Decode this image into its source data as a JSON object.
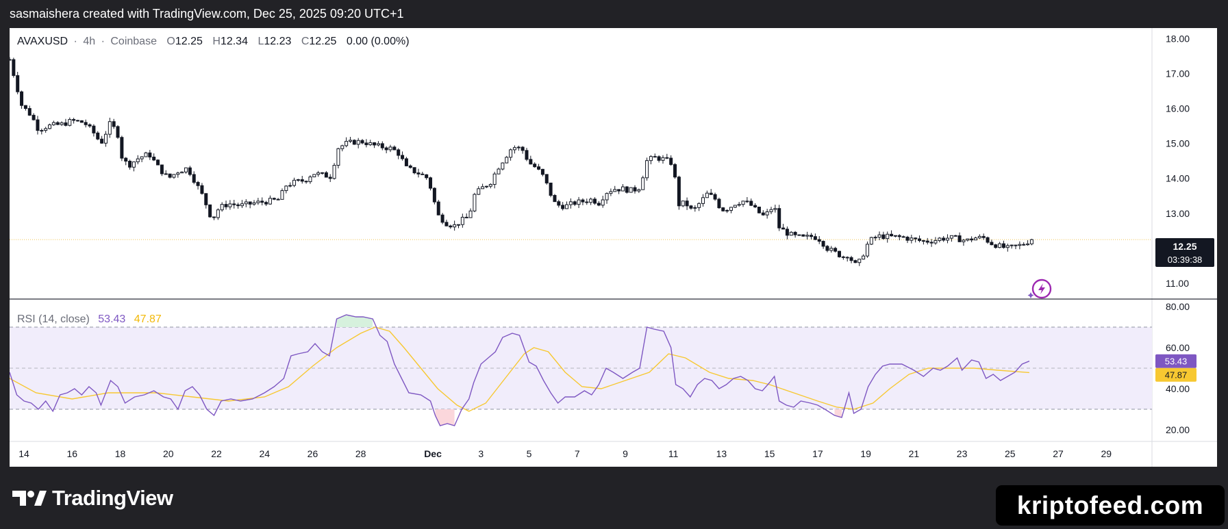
{
  "caption": "sasmaishera created with TradingView.com, Dec 25, 2025 09:20 UTC+1",
  "brand": {
    "name": "TradingView",
    "logo_icon": "tradingview-logo-icon"
  },
  "watermark": "kriptofeed.com",
  "legend": {
    "symbol": "AVAXUSD",
    "interval": "4h",
    "exchange": "Coinbase",
    "separator": "·",
    "open_label": "O",
    "open": "12.25",
    "high_label": "H",
    "high": "12.34",
    "low_label": "L",
    "low": "12.23",
    "close_label": "C",
    "close": "12.25",
    "change": "0.00 (0.00%)"
  },
  "price_badge": {
    "value": "12.25",
    "countdown": "03:39:38"
  },
  "rsi_legend": {
    "label": "RSI (14, close)",
    "rsi": "53.43",
    "ma": "47.87"
  },
  "rsi_badges": {
    "rsi": "53.43",
    "ma": "47.87"
  },
  "colors": {
    "candle": "#131722",
    "rsi_line": "#7e57c2",
    "rsi_ma": "#f7c831",
    "rsi_band": "#f1edfb",
    "price_line": "#f0c350"
  },
  "chart_data": {
    "type": "candlestick",
    "price_axis": {
      "ticks": [
        "18.00",
        "17.00",
        "16.00",
        "15.00",
        "14.00",
        "13.00",
        "11.00"
      ],
      "ylim": [
        10.55,
        18.3
      ]
    },
    "x_axis": {
      "ticks": [
        {
          "label": "14",
          "day": 14
        },
        {
          "label": "16",
          "day": 16
        },
        {
          "label": "18",
          "day": 18
        },
        {
          "label": "20",
          "day": 20
        },
        {
          "label": "22",
          "day": 22
        },
        {
          "label": "24",
          "day": 24
        },
        {
          "label": "26",
          "day": 26
        },
        {
          "label": "28",
          "day": 28
        },
        {
          "label": "Dec",
          "day": 31,
          "bold": true
        },
        {
          "label": "3",
          "day": 33
        },
        {
          "label": "5",
          "day": 35
        },
        {
          "label": "7",
          "day": 37
        },
        {
          "label": "9",
          "day": 39
        },
        {
          "label": "11",
          "day": 41
        },
        {
          "label": "13",
          "day": 43
        },
        {
          "label": "15",
          "day": 45
        },
        {
          "label": "17",
          "day": 47
        },
        {
          "label": "19",
          "day": 49
        },
        {
          "label": "21",
          "day": 51
        },
        {
          "label": "23",
          "day": 53
        },
        {
          "label": "25",
          "day": 55
        },
        {
          "label": "27",
          "day": 57
        },
        {
          "label": "29",
          "day": 59
        }
      ],
      "range_days": [
        13.4,
        60.9
      ]
    },
    "price_keypoints": [
      [
        13.4,
        17.4
      ],
      [
        13.6,
        16.9
      ],
      [
        13.9,
        16.1
      ],
      [
        14.3,
        15.8
      ],
      [
        14.6,
        15.4
      ],
      [
        15.0,
        15.5
      ],
      [
        15.6,
        15.55
      ],
      [
        16.0,
        15.65
      ],
      [
        16.5,
        15.6
      ],
      [
        16.9,
        15.3
      ],
      [
        17.2,
        15.0
      ],
      [
        17.6,
        15.6
      ],
      [
        17.9,
        15.25
      ],
      [
        18.1,
        14.5
      ],
      [
        18.4,
        14.4
      ],
      [
        18.8,
        14.6
      ],
      [
        19.2,
        14.7
      ],
      [
        19.6,
        14.3
      ],
      [
        20.0,
        14.0
      ],
      [
        20.4,
        14.2
      ],
      [
        20.8,
        14.3
      ],
      [
        21.2,
        13.8
      ],
      [
        21.5,
        13.4
      ],
      [
        21.7,
        13.0
      ],
      [
        21.85,
        12.85
      ],
      [
        22.1,
        13.15
      ],
      [
        22.5,
        13.28
      ],
      [
        23.0,
        13.22
      ],
      [
        23.6,
        13.3
      ],
      [
        24.2,
        13.35
      ],
      [
        24.6,
        13.4
      ],
      [
        24.9,
        13.8
      ],
      [
        25.3,
        13.9
      ],
      [
        25.7,
        13.95
      ],
      [
        26.0,
        14.15
      ],
      [
        26.4,
        14.1
      ],
      [
        26.8,
        14.05
      ],
      [
        27.0,
        14.85
      ],
      [
        27.4,
        15.0
      ],
      [
        27.8,
        15.05
      ],
      [
        28.1,
        15.05
      ],
      [
        28.5,
        14.95
      ],
      [
        28.9,
        14.9
      ],
      [
        29.3,
        14.85
      ],
      [
        29.6,
        14.7
      ],
      [
        29.9,
        14.3
      ],
      [
        30.4,
        14.15
      ],
      [
        30.8,
        14.0
      ],
      [
        31.0,
        13.5
      ],
      [
        31.2,
        12.95
      ],
      [
        31.6,
        12.7
      ],
      [
        31.9,
        12.65
      ],
      [
        32.2,
        12.8
      ],
      [
        32.5,
        12.9
      ],
      [
        32.7,
        13.5
      ],
      [
        33.0,
        13.7
      ],
      [
        33.4,
        13.9
      ],
      [
        33.7,
        14.3
      ],
      [
        34.0,
        14.6
      ],
      [
        34.3,
        14.9
      ],
      [
        34.7,
        14.85
      ],
      [
        35.0,
        14.45
      ],
      [
        35.3,
        14.3
      ],
      [
        35.6,
        14.05
      ],
      [
        35.9,
        13.55
      ],
      [
        36.1,
        13.25
      ],
      [
        36.5,
        13.2
      ],
      [
        36.9,
        13.3
      ],
      [
        37.3,
        13.35
      ],
      [
        37.6,
        13.4
      ],
      [
        37.9,
        13.3
      ],
      [
        38.2,
        13.6
      ],
      [
        38.5,
        13.7
      ],
      [
        38.9,
        13.7
      ],
      [
        39.3,
        13.65
      ],
      [
        39.6,
        13.75
      ],
      [
        39.9,
        14.5
      ],
      [
        40.2,
        14.6
      ],
      [
        40.6,
        14.55
      ],
      [
        40.9,
        14.45
      ],
      [
        41.1,
        13.9
      ],
      [
        41.2,
        13.25
      ],
      [
        41.5,
        13.3
      ],
      [
        41.8,
        13.05
      ],
      [
        42.1,
        13.3
      ],
      [
        42.4,
        13.55
      ],
      [
        42.7,
        13.45
      ],
      [
        43.0,
        13.1
      ],
      [
        43.3,
        13.15
      ],
      [
        43.6,
        13.3
      ],
      [
        43.9,
        13.35
      ],
      [
        44.2,
        13.25
      ],
      [
        44.5,
        13.05
      ],
      [
        44.8,
        12.9
      ],
      [
        45.0,
        13.1
      ],
      [
        45.2,
        13.2
      ],
      [
        45.4,
        12.6
      ],
      [
        45.7,
        12.45
      ],
      [
        46.0,
        12.35
      ],
      [
        46.4,
        12.3
      ],
      [
        46.8,
        12.35
      ],
      [
        47.1,
        12.25
      ],
      [
        47.4,
        12.0
      ],
      [
        47.8,
        11.85
      ],
      [
        48.1,
        11.75
      ],
      [
        48.3,
        11.85
      ],
      [
        48.5,
        11.5
      ],
      [
        48.8,
        11.65
      ],
      [
        49.0,
        12.05
      ],
      [
        49.3,
        12.3
      ],
      [
        49.6,
        12.35
      ],
      [
        50.0,
        12.33
      ],
      [
        50.5,
        12.32
      ],
      [
        51.0,
        12.25
      ],
      [
        51.4,
        12.2
      ],
      [
        51.8,
        12.22
      ],
      [
        52.1,
        12.28
      ],
      [
        52.5,
        12.3
      ],
      [
        52.8,
        12.28
      ],
      [
        53.2,
        12.22
      ],
      [
        53.5,
        12.3
      ],
      [
        53.9,
        12.3
      ],
      [
        54.2,
        12.15
      ],
      [
        54.6,
        12.05
      ],
      [
        54.9,
        12.0
      ],
      [
        55.2,
        12.05
      ],
      [
        55.5,
        12.1
      ],
      [
        55.7,
        12.18
      ],
      [
        55.9,
        12.25
      ]
    ],
    "last_price": 12.25,
    "rsi": {
      "label": "RSI (14, close)",
      "ylim": [
        15,
        83
      ],
      "ticks": [
        "80.00",
        "60.00",
        "40.00",
        "20.00"
      ],
      "bands": {
        "upper": 70,
        "middle": 50,
        "lower": 30
      },
      "rsi_values": [
        [
          13.4,
          48
        ],
        [
          13.7,
          37
        ],
        [
          14.0,
          34
        ],
        [
          14.3,
          33
        ],
        [
          14.6,
          30
        ],
        [
          14.9,
          34
        ],
        [
          15.2,
          29
        ],
        [
          15.5,
          37
        ],
        [
          15.8,
          38
        ],
        [
          16.1,
          40
        ],
        [
          16.4,
          37
        ],
        [
          16.7,
          41
        ],
        [
          17.0,
          38
        ],
        [
          17.2,
          32
        ],
        [
          17.6,
          44
        ],
        [
          17.9,
          41
        ],
        [
          18.2,
          33
        ],
        [
          18.6,
          36
        ],
        [
          19.0,
          37
        ],
        [
          19.4,
          39
        ],
        [
          19.8,
          36
        ],
        [
          20.1,
          35
        ],
        [
          20.4,
          30
        ],
        [
          20.7,
          39
        ],
        [
          21.0,
          41
        ],
        [
          21.3,
          37
        ],
        [
          21.6,
          30
        ],
        [
          21.9,
          27
        ],
        [
          22.2,
          34
        ],
        [
          22.6,
          35
        ],
        [
          23.0,
          34
        ],
        [
          23.5,
          35
        ],
        [
          24.0,
          38
        ],
        [
          24.4,
          41
        ],
        [
          24.8,
          45
        ],
        [
          25.1,
          56
        ],
        [
          25.4,
          57
        ],
        [
          25.8,
          58
        ],
        [
          26.1,
          62
        ],
        [
          26.4,
          58
        ],
        [
          26.7,
          56
        ],
        [
          27.0,
          74
        ],
        [
          27.4,
          76
        ],
        [
          27.8,
          75
        ],
        [
          28.1,
          75
        ],
        [
          28.5,
          74
        ],
        [
          28.8,
          66
        ],
        [
          29.1,
          63
        ],
        [
          29.4,
          52
        ],
        [
          29.7,
          45
        ],
        [
          30.0,
          38
        ],
        [
          30.5,
          37
        ],
        [
          30.9,
          34
        ],
        [
          31.1,
          27
        ],
        [
          31.3,
          22
        ],
        [
          31.6,
          23
        ],
        [
          31.9,
          22
        ],
        [
          32.2,
          30
        ],
        [
          32.5,
          35
        ],
        [
          32.7,
          43
        ],
        [
          33.0,
          52
        ],
        [
          33.3,
          55
        ],
        [
          33.6,
          58
        ],
        [
          33.9,
          65
        ],
        [
          34.3,
          67
        ],
        [
          34.6,
          66
        ],
        [
          35.0,
          53
        ],
        [
          35.3,
          51
        ],
        [
          35.6,
          44
        ],
        [
          35.9,
          38
        ],
        [
          36.2,
          33
        ],
        [
          36.5,
          36
        ],
        [
          36.9,
          36
        ],
        [
          37.3,
          39
        ],
        [
          37.6,
          37
        ],
        [
          37.9,
          42
        ],
        [
          38.2,
          50
        ],
        [
          38.5,
          48
        ],
        [
          38.9,
          45
        ],
        [
          39.3,
          48
        ],
        [
          39.6,
          50
        ],
        [
          39.9,
          70
        ],
        [
          40.2,
          69
        ],
        [
          40.6,
          68
        ],
        [
          40.9,
          60
        ],
        [
          41.1,
          42
        ],
        [
          41.4,
          40
        ],
        [
          41.7,
          36
        ],
        [
          42.0,
          42
        ],
        [
          42.3,
          45
        ],
        [
          42.6,
          44
        ],
        [
          42.9,
          40
        ],
        [
          43.2,
          42
        ],
        [
          43.5,
          45
        ],
        [
          43.8,
          46
        ],
        [
          44.1,
          44
        ],
        [
          44.4,
          40
        ],
        [
          44.7,
          39
        ],
        [
          45.0,
          43
        ],
        [
          45.2,
          46
        ],
        [
          45.4,
          34
        ],
        [
          45.7,
          32
        ],
        [
          46.0,
          31
        ],
        [
          46.3,
          34
        ],
        [
          46.7,
          33
        ],
        [
          47.0,
          32
        ],
        [
          47.3,
          30
        ],
        [
          47.7,
          27
        ],
        [
          48.0,
          26
        ],
        [
          48.3,
          38
        ],
        [
          48.5,
          28
        ],
        [
          48.8,
          30
        ],
        [
          49.1,
          41
        ],
        [
          49.4,
          47
        ],
        [
          49.7,
          51
        ],
        [
          50.0,
          52
        ],
        [
          50.5,
          52
        ],
        [
          51.0,
          49
        ],
        [
          51.4,
          46
        ],
        [
          51.8,
          50
        ],
        [
          52.1,
          49
        ],
        [
          52.4,
          51
        ],
        [
          52.8,
          55
        ],
        [
          53.0,
          49
        ],
        [
          53.4,
          54
        ],
        [
          53.7,
          53
        ],
        [
          54.0,
          45
        ],
        [
          54.3,
          47
        ],
        [
          54.6,
          44
        ],
        [
          54.9,
          46
        ],
        [
          55.2,
          48
        ],
        [
          55.5,
          52
        ],
        [
          55.8,
          53.43
        ]
      ],
      "ma_values": [
        [
          13.4,
          45
        ],
        [
          14.5,
          38
        ],
        [
          16.0,
          35
        ],
        [
          17.5,
          38
        ],
        [
          19.5,
          38
        ],
        [
          21.0,
          36
        ],
        [
          22.5,
          34
        ],
        [
          24.0,
          36
        ],
        [
          25.0,
          41
        ],
        [
          26.0,
          51
        ],
        [
          27.0,
          60
        ],
        [
          28.0,
          67
        ],
        [
          28.6,
          70
        ],
        [
          29.2,
          68
        ],
        [
          29.8,
          60
        ],
        [
          30.5,
          50
        ],
        [
          31.2,
          40
        ],
        [
          32.0,
          32
        ],
        [
          32.5,
          29
        ],
        [
          33.2,
          33
        ],
        [
          34.0,
          45
        ],
        [
          34.8,
          57
        ],
        [
          35.2,
          60
        ],
        [
          35.8,
          58
        ],
        [
          36.5,
          48
        ],
        [
          37.2,
          41
        ],
        [
          38.0,
          40
        ],
        [
          39.0,
          44
        ],
        [
          40.0,
          48
        ],
        [
          40.8,
          57
        ],
        [
          41.5,
          55
        ],
        [
          42.5,
          48
        ],
        [
          43.3,
          45
        ],
        [
          44.3,
          44
        ],
        [
          45.0,
          42
        ],
        [
          46.0,
          38
        ],
        [
          47.0,
          34
        ],
        [
          47.8,
          31
        ],
        [
          48.5,
          30
        ],
        [
          49.3,
          33
        ],
        [
          50.0,
          40
        ],
        [
          50.8,
          47
        ],
        [
          51.6,
          50
        ],
        [
          52.5,
          50
        ],
        [
          53.5,
          50
        ],
        [
          54.5,
          49
        ],
        [
          55.8,
          47.87
        ]
      ]
    }
  }
}
